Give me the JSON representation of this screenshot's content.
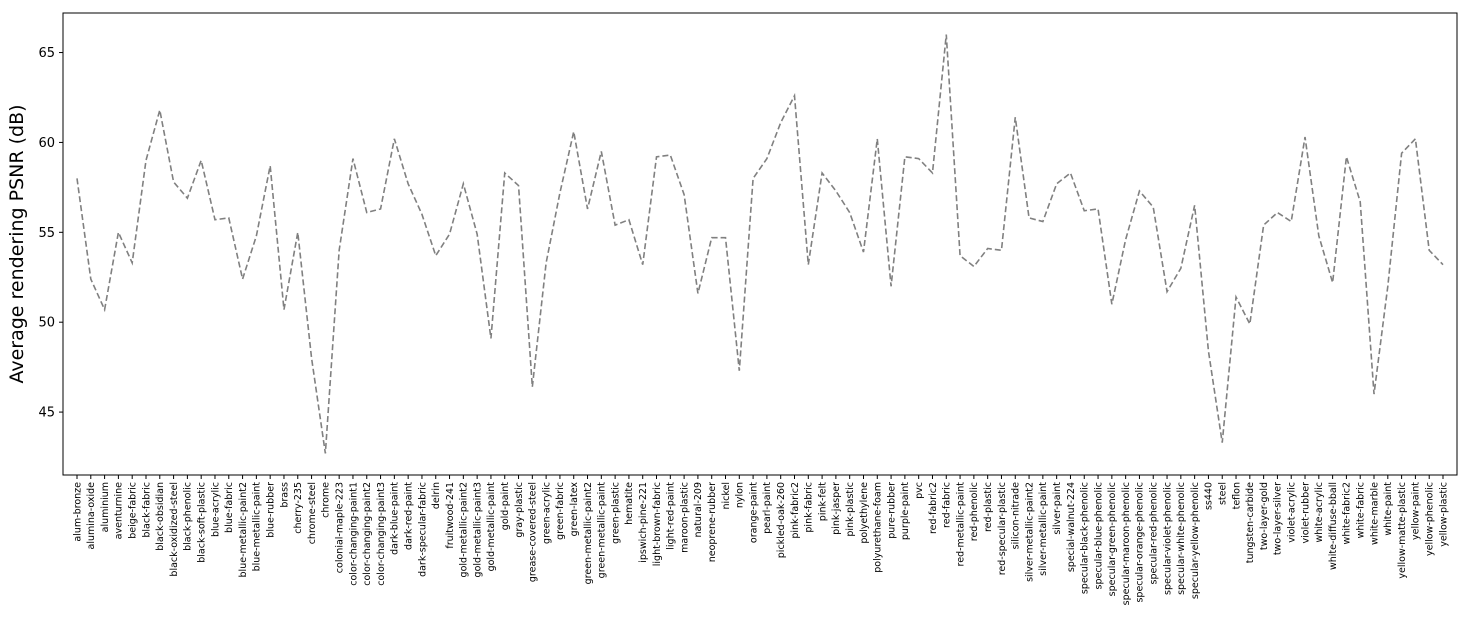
{
  "chart_data": {
    "type": "line",
    "title": "",
    "xlabel": "",
    "ylabel": "Average rendering PSNR (dB)",
    "ylim": [
      41.5,
      67.2
    ],
    "yticks": [
      45,
      50,
      55,
      60,
      65
    ],
    "ytick_labels": [
      "45",
      "50",
      "55",
      "60",
      "65"
    ],
    "grid": false,
    "line_color": "#808080",
    "line_style": "dashed",
    "categories": [
      "alum-bronze",
      "alumina-oxide",
      "aluminium",
      "aventurnine",
      "beige-fabric",
      "black-fabric",
      "black-obsidian",
      "black-oxidized-steel",
      "black-phenolic",
      "black-soft-plastic",
      "blue-acrylic",
      "blue-fabric",
      "blue-metallic-paint2",
      "blue-metallic-paint",
      "blue-rubber",
      "brass",
      "cherry-235",
      "chrome-steel",
      "chrome",
      "colonial-maple-223",
      "color-changing-paint1",
      "color-changing-paint2",
      "color-changing-paint3",
      "dark-blue-paint",
      "dark-red-paint",
      "dark-specular-fabric",
      "delrin",
      "fruitwood-241",
      "gold-metallic-paint2",
      "gold-metallic-paint3",
      "gold-metallic-paint",
      "gold-paint",
      "gray-plastic",
      "grease-covered-steel",
      "green-acrylic",
      "green-fabric",
      "green-latex",
      "green-metallic-paint2",
      "green-metallic-paint",
      "green-plastic",
      "hematite",
      "ipswich-pine-221",
      "light-brown-fabric",
      "light-red-paint",
      "maroon-plastic",
      "natural-209",
      "neoprene-rubber",
      "nickel",
      "nylon",
      "orange-paint",
      "pearl-paint",
      "pickled-oak-260",
      "pink-fabric2",
      "pink-fabric",
      "pink-felt",
      "pink-jasper",
      "pink-plastic",
      "polyethylene",
      "polyurethane-foam",
      "pure-rubber",
      "purple-paint",
      "pvc",
      "red-fabric2",
      "red-fabric",
      "red-metallic-paint",
      "red-phenolic",
      "red-plastic",
      "red-specular-plastic",
      "silicon-nitrade",
      "silver-metallic-paint2",
      "silver-metallic-paint",
      "silver-paint",
      "special-walnut-224",
      "specular-black-phenolic",
      "specular-blue-phenolic",
      "specular-green-phenolic",
      "specular-maroon-phenolic",
      "specular-orange-phenolic",
      "specular-red-phenolic",
      "specular-violet-phenolic",
      "specular-white-phenolic",
      "specular-yellow-phenolic",
      "ss440",
      "steel",
      "teflon",
      "tungsten-carbide",
      "two-layer-gold",
      "two-layer-silver",
      "violet-acrylic",
      "violet-rubber",
      "white-acrylic",
      "white-diffuse-bball",
      "white-fabric2",
      "white-fabric",
      "white-marble",
      "white-paint",
      "yellow-matte-plastic",
      "yellow-paint",
      "yellow-phenolic",
      "yellow-plastic"
    ],
    "values": [
      58.0,
      52.4,
      50.7,
      55.0,
      53.3,
      59.0,
      61.8,
      57.8,
      56.9,
      59.0,
      55.7,
      55.8,
      52.4,
      54.8,
      58.7,
      50.7,
      55.0,
      48.0,
      42.7,
      54.0,
      59.1,
      56.1,
      56.3,
      60.2,
      57.7,
      56.0,
      53.7,
      54.9,
      57.7,
      54.9,
      49.1,
      58.3,
      57.6,
      46.4,
      53.3,
      57.2,
      60.6,
      56.3,
      59.5,
      55.4,
      55.7,
      53.2,
      59.2,
      59.3,
      57.1,
      51.6,
      54.7,
      54.7,
      47.3,
      58.0,
      59.1,
      61.1,
      62.6,
      53.2,
      58.3,
      57.3,
      56.1,
      53.9,
      60.2,
      52.0,
      59.2,
      59.1,
      58.3,
      66.0,
      53.7,
      53.1,
      54.1,
      54.0,
      61.4,
      55.8,
      55.6,
      57.7,
      58.3,
      56.2,
      56.3,
      51.0,
      54.6,
      57.3,
      56.4,
      51.7,
      53.0,
      56.5,
      48.4,
      43.3,
      51.4,
      49.9,
      55.4,
      56.1,
      55.6,
      60.3,
      54.8,
      52.2,
      59.2,
      56.7,
      46.0,
      52.0,
      59.4,
      60.2,
      54.0,
      53.2
    ]
  }
}
